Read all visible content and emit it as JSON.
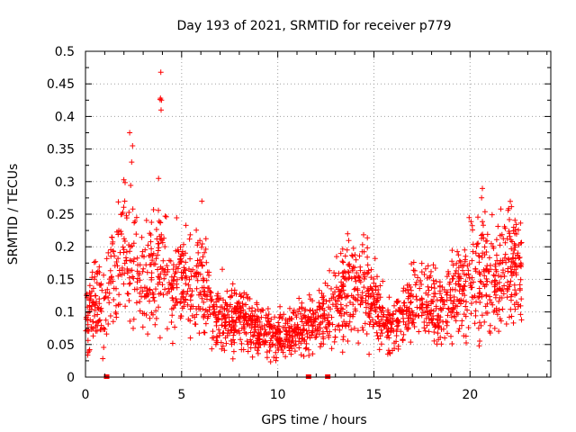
{
  "chart_data": {
    "type": "scatter",
    "title": "Day 193 of 2021, SRMTID for receiver p779",
    "xlabel": "GPS time / hours",
    "ylabel": "SRMTID / TECUs",
    "xlim": [
      0,
      24.2
    ],
    "ylim": [
      0,
      0.5
    ],
    "xticks": [
      0,
      5,
      10,
      15,
      20
    ],
    "yticks": [
      0,
      0.05,
      0.1,
      0.15,
      0.2,
      0.25,
      0.3,
      0.35,
      0.4,
      0.45,
      0.5
    ],
    "ytick_labels": [
      "0",
      "0.05",
      "0.1",
      "0.15",
      "0.2",
      "0.25",
      "0.3",
      "0.35",
      "0.4",
      "0.45",
      "0.5"
    ],
    "grid": true,
    "series_color": "#ff0000",
    "point_count": 2000,
    "data_span_hours": [
      0,
      22.7
    ],
    "trend_profile": [
      [
        0.0,
        0.09
      ],
      [
        0.5,
        0.11
      ],
      [
        1.0,
        0.1
      ],
      [
        1.5,
        0.16
      ],
      [
        2.0,
        0.2
      ],
      [
        2.5,
        0.18
      ],
      [
        3.0,
        0.14
      ],
      [
        3.5,
        0.15
      ],
      [
        4.0,
        0.17
      ],
      [
        4.5,
        0.13
      ],
      [
        5.0,
        0.14
      ],
      [
        5.5,
        0.15
      ],
      [
        6.0,
        0.14
      ],
      [
        6.5,
        0.1
      ],
      [
        7.0,
        0.09
      ],
      [
        7.5,
        0.085
      ],
      [
        8.0,
        0.09
      ],
      [
        8.5,
        0.08
      ],
      [
        9.0,
        0.075
      ],
      [
        9.5,
        0.065
      ],
      [
        10.0,
        0.06
      ],
      [
        10.5,
        0.065
      ],
      [
        11.0,
        0.07
      ],
      [
        11.5,
        0.08
      ],
      [
        12.0,
        0.085
      ],
      [
        12.5,
        0.09
      ],
      [
        13.0,
        0.11
      ],
      [
        13.5,
        0.13
      ],
      [
        14.0,
        0.15
      ],
      [
        14.5,
        0.14
      ],
      [
        15.0,
        0.11
      ],
      [
        15.5,
        0.08
      ],
      [
        16.0,
        0.075
      ],
      [
        16.5,
        0.09
      ],
      [
        17.0,
        0.11
      ],
      [
        17.5,
        0.12
      ],
      [
        18.0,
        0.1
      ],
      [
        18.5,
        0.1
      ],
      [
        19.0,
        0.11
      ],
      [
        19.5,
        0.13
      ],
      [
        20.0,
        0.15
      ],
      [
        20.5,
        0.16
      ],
      [
        21.0,
        0.15
      ],
      [
        21.5,
        0.14
      ],
      [
        22.0,
        0.17
      ],
      [
        22.5,
        0.15
      ],
      [
        22.7,
        0.14
      ]
    ],
    "outliers": [
      {
        "x": 3.9,
        "y": 0.428
      },
      {
        "x": 3.95,
        "y": 0.425
      },
      {
        "x": 3.88,
        "y": 0.426
      },
      {
        "x": 3.92,
        "y": 0.468
      },
      {
        "x": 3.93,
        "y": 0.41
      },
      {
        "x": 2.3,
        "y": 0.375
      },
      {
        "x": 2.45,
        "y": 0.355
      },
      {
        "x": 2.4,
        "y": 0.33
      },
      {
        "x": 3.8,
        "y": 0.305
      },
      {
        "x": 6.05,
        "y": 0.27
      },
      {
        "x": 21.6,
        "y": 0.258
      }
    ],
    "zero_markers": [
      1.1,
      11.6,
      12.6
    ]
  }
}
